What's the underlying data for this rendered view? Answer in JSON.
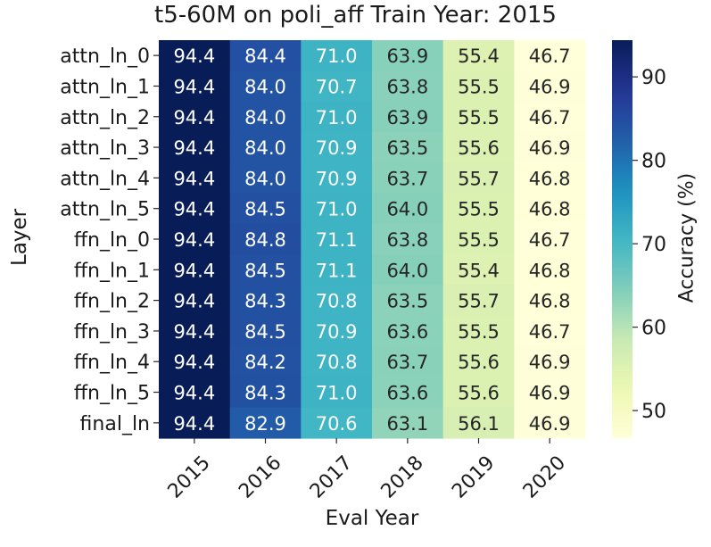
{
  "chart_data": {
    "type": "heatmap",
    "title": "t5-60M on poli_aff Train Year: 2015",
    "xlabel": "Eval Year",
    "ylabel": "Layer",
    "colorbar_label": "Accuracy (%)",
    "colormap": "YlGnBu",
    "vmin": 46.7,
    "vmax": 94.4,
    "colorbar_ticks": [
      50,
      60,
      70,
      80,
      90
    ],
    "x": [
      "2015",
      "2016",
      "2017",
      "2018",
      "2019",
      "2020"
    ],
    "y": [
      "attn_ln_0",
      "attn_ln_1",
      "attn_ln_2",
      "attn_ln_3",
      "attn_ln_4",
      "attn_ln_5",
      "ffn_ln_0",
      "ffn_ln_1",
      "ffn_ln_2",
      "ffn_ln_3",
      "ffn_ln_4",
      "ffn_ln_5",
      "final_ln"
    ],
    "values": [
      [
        94.4,
        84.4,
        71.0,
        63.9,
        55.4,
        46.7
      ],
      [
        94.4,
        84.0,
        70.7,
        63.8,
        55.5,
        46.9
      ],
      [
        94.4,
        84.0,
        71.0,
        63.9,
        55.5,
        46.7
      ],
      [
        94.4,
        84.0,
        70.9,
        63.5,
        55.6,
        46.9
      ],
      [
        94.4,
        84.0,
        70.9,
        63.7,
        55.7,
        46.8
      ],
      [
        94.4,
        84.5,
        71.0,
        64.0,
        55.5,
        46.8
      ],
      [
        94.4,
        84.8,
        71.1,
        63.8,
        55.5,
        46.7
      ],
      [
        94.4,
        84.5,
        71.1,
        64.0,
        55.4,
        46.8
      ],
      [
        94.4,
        84.3,
        70.8,
        63.5,
        55.7,
        46.8
      ],
      [
        94.4,
        84.5,
        70.9,
        63.6,
        55.5,
        46.7
      ],
      [
        94.4,
        84.2,
        70.8,
        63.7,
        55.6,
        46.9
      ],
      [
        94.4,
        84.3,
        71.0,
        63.6,
        55.6,
        46.9
      ],
      [
        94.4,
        82.9,
        70.6,
        63.1,
        56.1,
        46.9
      ]
    ]
  }
}
